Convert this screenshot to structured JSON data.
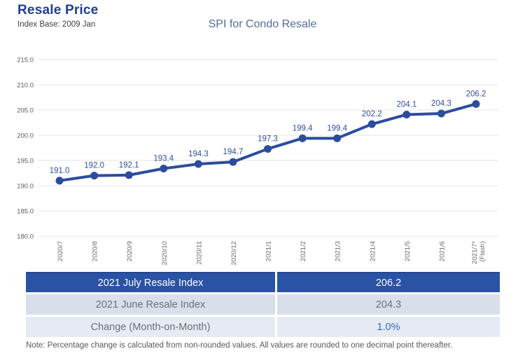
{
  "header": {
    "title": "Resale Price",
    "index_base": "Index Base: 2009 Jan"
  },
  "chart": {
    "title": "SPI for Condo Resale"
  },
  "chart_data": {
    "type": "line",
    "title": "SPI for Condo Resale",
    "categories": [
      "2020/7",
      "2020/8",
      "2020/9",
      "2020/10",
      "2020/11",
      "2020/12",
      "2021/1",
      "2021/2",
      "2021/3",
      "2021/4",
      "2021/5",
      "2021/6",
      "2021/7*\n(Flash)"
    ],
    "values": [
      191.0,
      192.0,
      192.1,
      193.4,
      194.3,
      194.7,
      197.3,
      199.4,
      199.4,
      202.2,
      204.1,
      204.3,
      206.2
    ],
    "xlabel": "",
    "ylabel": "",
    "ylim": [
      180.0,
      215.0
    ],
    "ytick_step": 5,
    "grid": true,
    "legend": "none",
    "data_labels": true
  },
  "table": {
    "rows": [
      {
        "label": "2021 July Resale Index",
        "value": "206.2"
      },
      {
        "label": "2021 June Resale Index",
        "value": "204.3"
      },
      {
        "label": "Change (Month-on-Month)",
        "value": "1.0%"
      }
    ]
  },
  "note": "Note: Percentage change is calculated from non-rounded values.  All values are rounded to one decimal point thereafter.",
  "colors": {
    "title_blue": "#1F3E92",
    "chart_title_blue": "#4F6D9B",
    "line_blue": "#2C4C9E",
    "data_label_blue": "#2F4F9E",
    "grid_gray": "#E6E6E6",
    "axis_gray": "#595959",
    "table_header_bg": "#2A52A5",
    "table_row_even_bg": "#D9DEEB",
    "table_row_odd_bg": "#E6EAF3",
    "table_text_gray": "#6C7176",
    "change_value_blue": "#2D6FC0"
  }
}
